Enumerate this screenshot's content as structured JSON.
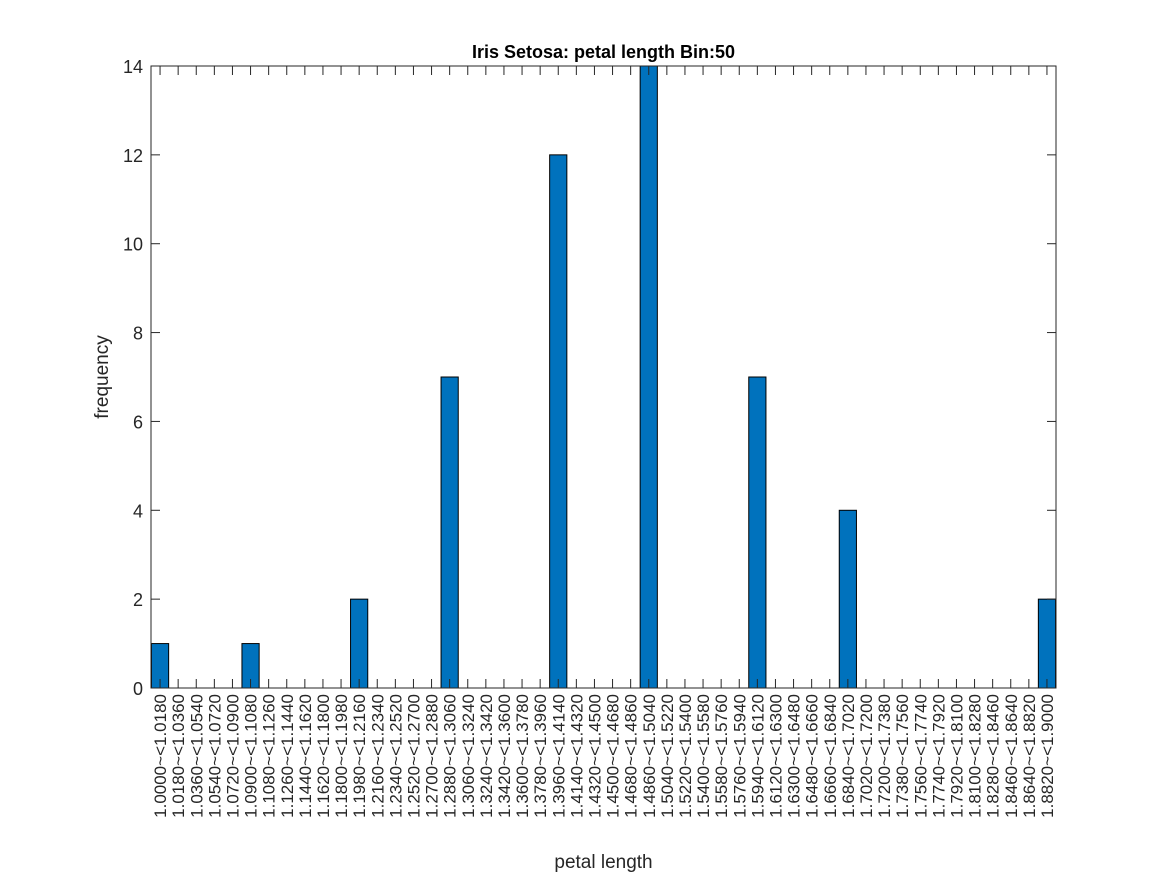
{
  "chart_data": {
    "type": "bar",
    "title": "Iris Setosa: petal length Bin:50",
    "xlabel": "petal length",
    "ylabel": "frequency",
    "ylim": [
      0,
      14
    ],
    "yticks": [
      0,
      2,
      4,
      6,
      8,
      10,
      12,
      14
    ],
    "grid": false,
    "bar_color": "#0072BD",
    "categories": [
      "1.0000~<1.0180",
      "1.0180~<1.0360",
      "1.0360~<1.0540",
      "1.0540~<1.0720",
      "1.0720~<1.0900",
      "1.0900~<1.1080",
      "1.1080~<1.1260",
      "1.1260~<1.1440",
      "1.1440~<1.1620",
      "1.1620~<1.1800",
      "1.1800~<1.1980",
      "1.1980~<1.2160",
      "1.2160~<1.2340",
      "1.2340~<1.2520",
      "1.2520~<1.2700",
      "1.2700~<1.2880",
      "1.2880~<1.3060",
      "1.3060~<1.3240",
      "1.3240~<1.3420",
      "1.3420~<1.3600",
      "1.3600~<1.3780",
      "1.3780~<1.3960",
      "1.3960~<1.4140",
      "1.4140~<1.4320",
      "1.4320~<1.4500",
      "1.4500~<1.4680",
      "1.4680~<1.4860",
      "1.4860~<1.5040",
      "1.5040~<1.5220",
      "1.5220~<1.5400",
      "1.5400~<1.5580",
      "1.5580~<1.5760",
      "1.5760~<1.5940",
      "1.5940~<1.6120",
      "1.6120~<1.6300",
      "1.6300~<1.6480",
      "1.6480~<1.6660",
      "1.6660~<1.6840",
      "1.6840~<1.7020",
      "1.7020~<1.7200",
      "1.7200~<1.7380",
      "1.7380~<1.7560",
      "1.7560~<1.7740",
      "1.7740~<1.7920",
      "1.7920~<1.8100",
      "1.8100~<1.8280",
      "1.8280~<1.8460",
      "1.8460~<1.8640",
      "1.8640~<1.8820",
      "1.8820~<1.9000"
    ],
    "values": [
      1,
      0,
      0,
      0,
      0,
      1,
      0,
      0,
      0,
      0,
      0,
      2,
      0,
      0,
      0,
      0,
      7,
      0,
      0,
      0,
      0,
      0,
      12,
      0,
      0,
      0,
      0,
      14,
      0,
      0,
      0,
      0,
      0,
      7,
      0,
      0,
      0,
      0,
      4,
      0,
      0,
      0,
      0,
      0,
      0,
      0,
      0,
      0,
      0,
      2
    ]
  }
}
